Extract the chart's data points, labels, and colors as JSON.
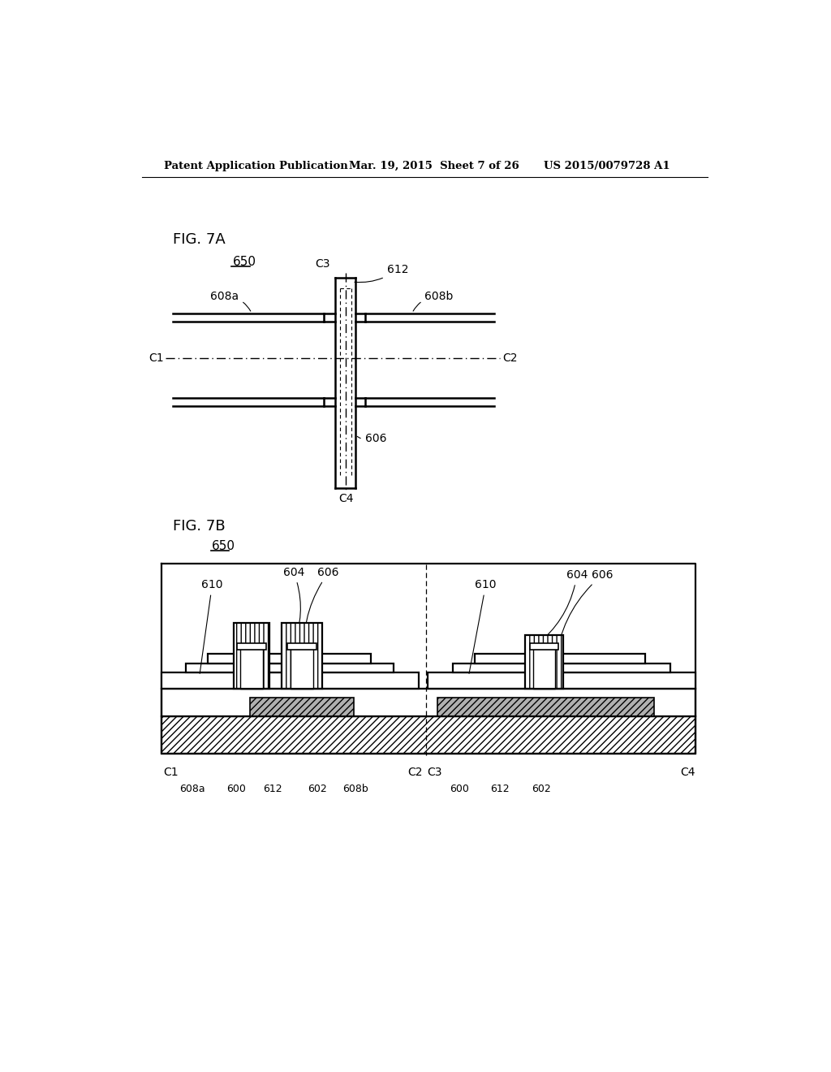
{
  "bg_color": "#ffffff",
  "header_left": "Patent Application Publication",
  "header_mid": "Mar. 19, 2015  Sheet 7 of 26",
  "header_right": "US 2015/0079728 A1"
}
